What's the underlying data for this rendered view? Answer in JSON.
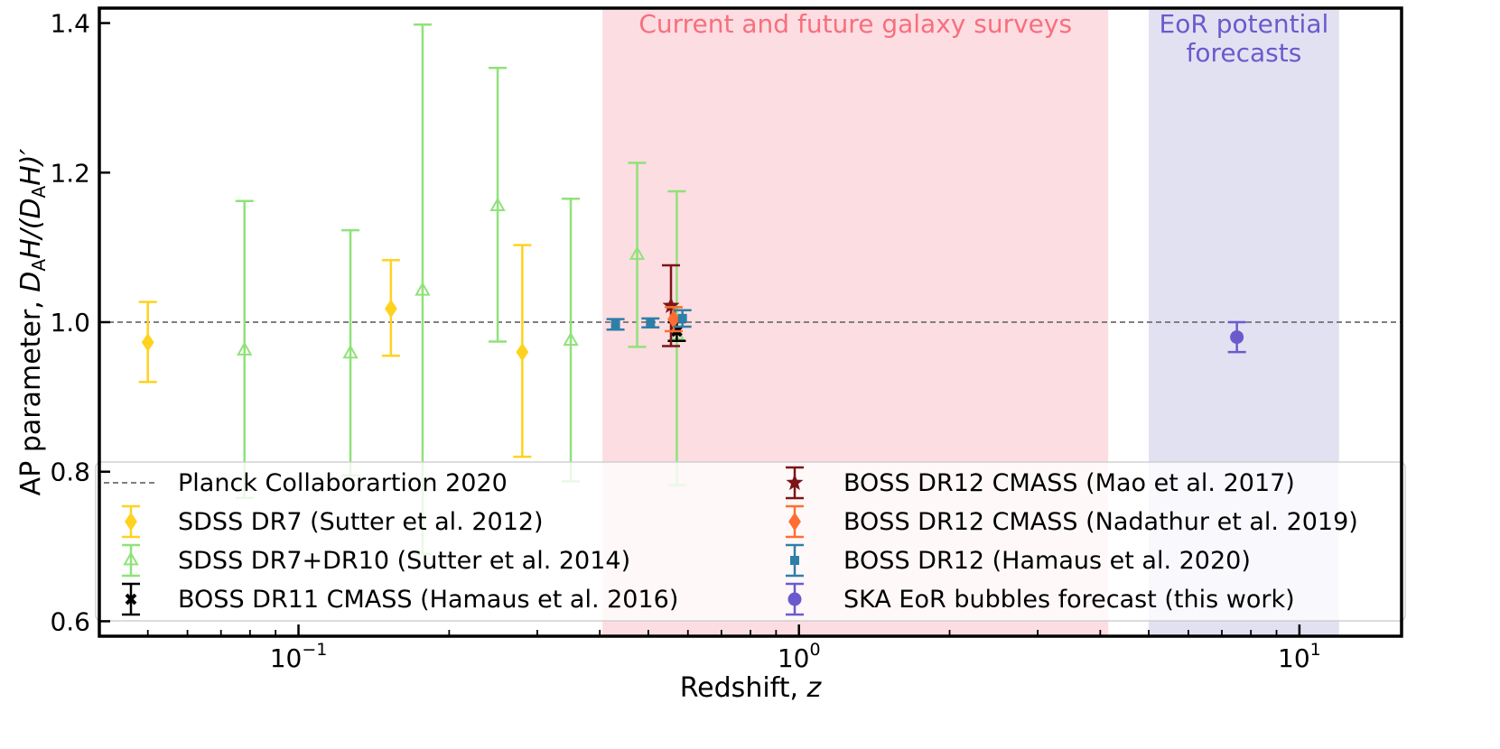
{
  "chart_data": {
    "type": "scatter",
    "xscale": "log",
    "xlim": [
      0.04,
      16
    ],
    "ylim": [
      0.58,
      1.42
    ],
    "xlabel_text": "Redshift, ",
    "xlabel_var": "z",
    "ylabel": {
      "prefix": "AP parameter, ",
      "D": "D",
      "A": "A",
      "H": "H/(",
      "closing": "H)′"
    },
    "y_ticks": [
      {
        "value": 0.6,
        "label": "0.6"
      },
      {
        "value": 0.8,
        "label": "0.8"
      },
      {
        "value": 1.0,
        "label": "1.0"
      },
      {
        "value": 1.2,
        "label": "1.2"
      },
      {
        "value": 1.4,
        "label": "1.4"
      }
    ],
    "x_ticks": [
      {
        "value": 0.1,
        "base": "10",
        "exp": "−1"
      },
      {
        "value": 1,
        "base": "10",
        "exp": "0"
      },
      {
        "value": 10,
        "base": "10",
        "exp": "1"
      }
    ],
    "regions": [
      {
        "name": "galaxy-surveys",
        "x0": 0.405,
        "x1": 4.15,
        "color": "#fcdde1",
        "label_lines": [
          "Current and future galaxy surveys"
        ],
        "label_color": "#f76f7e"
      },
      {
        "name": "eor-forecasts",
        "x0": 5.0,
        "x1": 12.0,
        "color": "#e2e1f2",
        "label_lines": [
          "EoR potential",
          "forecasts"
        ],
        "label_color": "#6a5acd"
      }
    ],
    "reference_line": {
      "y": 1.0,
      "color": "#7f7f7f",
      "label": "Planck Collaborartion 2020"
    },
    "series": [
      {
        "name": "SDSS DR7 (Sutter et al. 2012)",
        "color": "#ffd21f",
        "marker": "diamond",
        "filled": true,
        "points": [
          {
            "x": 0.05,
            "y": 0.973,
            "lo": 0.92,
            "hi": 1.027
          },
          {
            "x": 0.153,
            "y": 1.018,
            "lo": 0.955,
            "hi": 1.083
          },
          {
            "x": 0.28,
            "y": 0.96,
            "lo": 0.82,
            "hi": 1.103
          }
        ]
      },
      {
        "name": "SDSS DR7+DR10 (Sutter et al. 2014)",
        "color": "#8fe27a",
        "marker": "triangle",
        "filled": false,
        "points": [
          {
            "x": 0.078,
            "y": 0.962,
            "lo": 0.765,
            "hi": 1.162
          },
          {
            "x": 0.127,
            "y": 0.958,
            "lo": 0.795,
            "hi": 1.123
          },
          {
            "x": 0.177,
            "y": 1.042,
            "lo": 0.69,
            "hi": 1.398
          },
          {
            "x": 0.25,
            "y": 1.155,
            "lo": 0.974,
            "hi": 1.34
          },
          {
            "x": 0.35,
            "y": 0.975,
            "lo": 0.787,
            "hi": 1.165
          },
          {
            "x": 0.475,
            "y": 1.09,
            "lo": 0.967,
            "hi": 1.213
          },
          {
            "x": 0.57,
            "y": 0.983,
            "lo": 0.782,
            "hi": 1.175
          }
        ]
      },
      {
        "name": "BOSS DR11 CMASS (Hamaus et al. 2016)",
        "color": "#000000",
        "marker": "x",
        "filled": true,
        "points": [
          {
            "x": 0.57,
            "y": 0.988,
            "lo": 0.975,
            "hi": 1.0
          }
        ]
      },
      {
        "name": "BOSS DR12 CMASS (Mao et al. 2017)",
        "color": "#7b1518",
        "marker": "star",
        "filled": true,
        "points": [
          {
            "x": 0.555,
            "y": 1.022,
            "lo": 0.968,
            "hi": 1.076
          }
        ]
      },
      {
        "name": "BOSS DR12 CMASS (Nadathur et al. 2019)",
        "color": "#ff6e30",
        "marker": "diamond",
        "filled": true,
        "points": [
          {
            "x": 0.562,
            "y": 1.004,
            "lo": 0.988,
            "hi": 1.02
          }
        ]
      },
      {
        "name": "BOSS DR12 (Hamaus et al. 2020)",
        "color": "#2e7fa8",
        "marker": "square",
        "filled": true,
        "points": [
          {
            "x": 0.43,
            "y": 0.997,
            "lo": 0.99,
            "hi": 1.004
          },
          {
            "x": 0.505,
            "y": 0.999,
            "lo": 0.993,
            "hi": 1.005
          },
          {
            "x": 0.585,
            "y": 1.005,
            "lo": 0.994,
            "hi": 1.016
          }
        ]
      },
      {
        "name": "SKA EoR bubbles forecast (this work)",
        "color": "#6a5acd",
        "marker": "circle",
        "filled": true,
        "points": [
          {
            "x": 7.5,
            "y": 0.98,
            "lo": 0.96,
            "hi": 1.0
          }
        ]
      }
    ],
    "legend": {
      "placement": "bottom",
      "left_column": [
        "Planck Collaborartion 2020",
        "SDSS DR7 (Sutter et al. 2012)",
        "SDSS DR7+DR10 (Sutter et al. 2014)",
        "BOSS DR11 CMASS (Hamaus et al. 2016)"
      ],
      "right_column": [
        "BOSS DR12 CMASS (Mao et al. 2017)",
        "BOSS DR12 CMASS (Nadathur et al. 2019)",
        "BOSS DR12 (Hamaus et al. 2020)",
        "SKA EoR bubbles forecast (this work)"
      ]
    }
  }
}
